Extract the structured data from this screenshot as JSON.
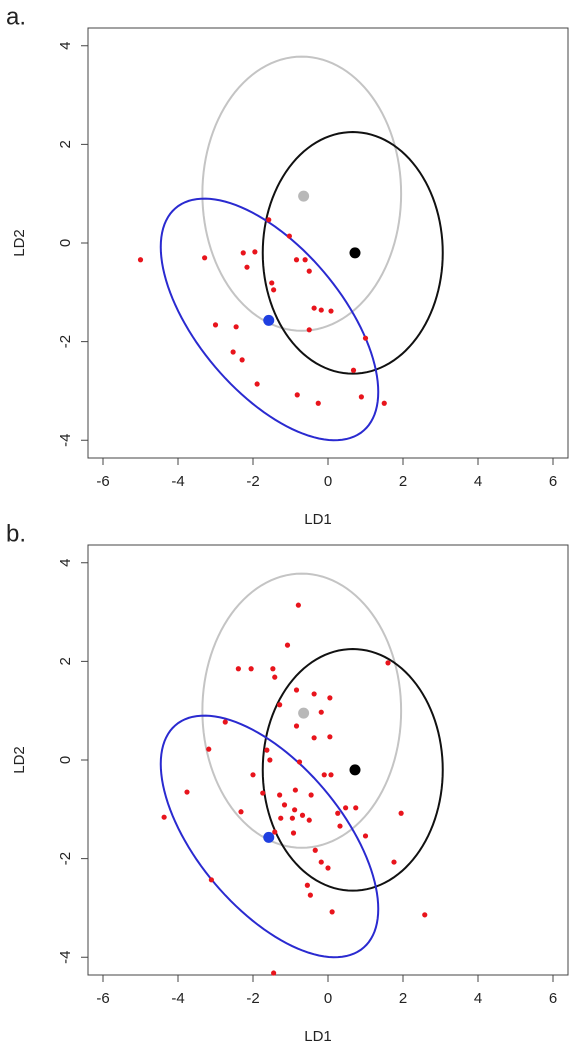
{
  "chart_data": [
    {
      "type": "scatter",
      "panel_label": "a.",
      "xlabel": "LD1",
      "ylabel": "LD2",
      "xlim": [
        -6.4,
        6.4
      ],
      "ylim": [
        -4.36,
        4.36
      ],
      "xticks": [
        -6,
        -4,
        -2,
        0,
        2,
        4,
        6
      ],
      "yticks": [
        -4,
        -2,
        0,
        2,
        4
      ],
      "ellipses": [
        {
          "color": "#c4c4c4",
          "cx": -0.7,
          "cy": 1.0,
          "sx": 2.65,
          "sy": 2.78,
          "rho": 0
        },
        {
          "color": "#111111",
          "cx": 0.66,
          "cy": -0.2,
          "sx": 2.4,
          "sy": 2.45,
          "rho": 0
        },
        {
          "color": "#2a2ad0",
          "cx": -1.56,
          "cy": -1.55,
          "sx": 2.9,
          "sy": 2.45,
          "rho": -0.6
        }
      ],
      "centroids": [
        {
          "color": "#b8b8b8",
          "x": -0.65,
          "y": 0.95
        },
        {
          "color": "#000000",
          "x": 0.72,
          "y": -0.2
        },
        {
          "color": "#1f3fe0",
          "x": -1.58,
          "y": -1.57
        }
      ],
      "points": {
        "color": "#e8141c",
        "x": [
          -5.0,
          -3.29,
          -2.26,
          -1.95,
          -2.16,
          -1.58,
          -1.03,
          -0.84,
          -0.61,
          -0.5,
          -1.5,
          -1.45,
          -0.37,
          -0.18,
          0.08,
          -3.0,
          -2.45,
          -0.5,
          -2.53,
          -2.29,
          1.0,
          0.68,
          -1.89,
          -0.82,
          -0.26,
          0.89,
          1.5
        ],
        "y": [
          -0.34,
          -0.3,
          -0.2,
          -0.18,
          -0.49,
          0.47,
          0.14,
          -0.34,
          -0.34,
          -0.57,
          -0.81,
          -0.95,
          -1.32,
          -1.36,
          -1.38,
          -1.66,
          -1.7,
          -1.76,
          -2.21,
          -2.37,
          -1.93,
          -2.58,
          -2.86,
          -3.08,
          -3.25,
          -3.12,
          -3.25
        ]
      }
    },
    {
      "type": "scatter",
      "panel_label": "b.",
      "xlabel": "LD1",
      "ylabel": "LD2",
      "xlim": [
        -6.4,
        6.4
      ],
      "ylim": [
        -4.36,
        4.36
      ],
      "xticks": [
        -6,
        -4,
        -2,
        0,
        2,
        4,
        6
      ],
      "yticks": [
        -4,
        -2,
        0,
        2,
        4
      ],
      "ellipses": [
        {
          "color": "#c4c4c4",
          "cx": -0.7,
          "cy": 1.0,
          "sx": 2.65,
          "sy": 2.78,
          "rho": 0
        },
        {
          "color": "#111111",
          "cx": 0.66,
          "cy": -0.2,
          "sx": 2.4,
          "sy": 2.45,
          "rho": 0
        },
        {
          "color": "#2a2ad0",
          "cx": -1.56,
          "cy": -1.55,
          "sx": 2.9,
          "sy": 2.45,
          "rho": -0.6
        }
      ],
      "centroids": [
        {
          "color": "#b8b8b8",
          "x": -0.65,
          "y": 0.95
        },
        {
          "color": "#000000",
          "x": 0.72,
          "y": -0.2
        },
        {
          "color": "#1f3fe0",
          "x": -1.58,
          "y": -1.57
        }
      ],
      "points": {
        "color": "#e8141c",
        "x": [
          -0.79,
          -1.08,
          -1.47,
          -1.42,
          -2.39,
          -2.05,
          -0.84,
          -0.37,
          0.05,
          1.6,
          -0.18,
          -1.29,
          -0.84,
          -0.37,
          0.05,
          -1.63,
          -2.74,
          -3.18,
          -1.55,
          -0.76,
          -0.1,
          0.08,
          -2.0,
          -3.76,
          -1.74,
          -1.29,
          -0.87,
          -0.45,
          -4.37,
          -2.32,
          -1.16,
          -0.89,
          -0.95,
          -0.68,
          -1.26,
          -1.42,
          -0.92,
          -0.5,
          0.26,
          0.47,
          0.74,
          1.0,
          0.32,
          1.95,
          1.76,
          2.58,
          -0.34,
          -0.18,
          0,
          -0.55,
          -0.47,
          0.11,
          -3.11,
          -1.45
        ],
        "y": [
          3.14,
          2.33,
          1.85,
          1.68,
          1.85,
          1.85,
          1.42,
          1.34,
          1.26,
          1.97,
          0.97,
          1.12,
          0.69,
          0.45,
          0.47,
          0.2,
          0.77,
          0.22,
          0,
          -0.04,
          -0.3,
          -0.3,
          -0.3,
          -0.65,
          -0.67,
          -0.71,
          -0.61,
          -0.71,
          -1.16,
          -1.05,
          -0.91,
          -1.01,
          -1.18,
          -1.12,
          -1.18,
          -1.46,
          -1.48,
          -1.22,
          -1.08,
          -0.97,
          -0.97,
          -1.54,
          -1.34,
          -1.08,
          -2.07,
          -3.14,
          -1.83,
          -2.07,
          -2.19,
          -2.54,
          -2.74,
          -3.08,
          -2.43,
          -4.32
        ]
      }
    }
  ]
}
